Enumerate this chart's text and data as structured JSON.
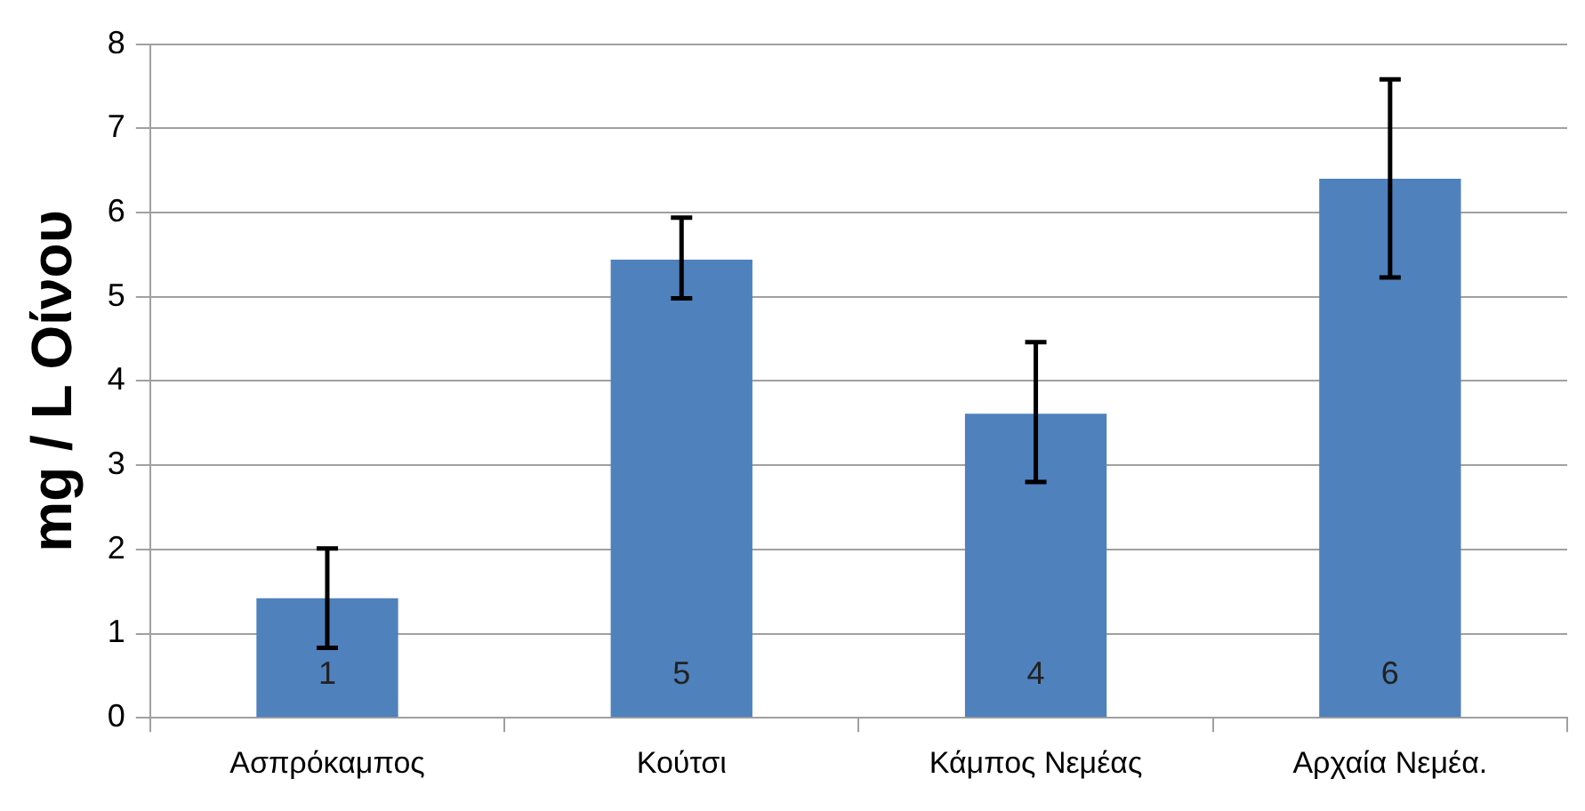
{
  "chart_data": {
    "type": "bar",
    "ylabel": "mg / L Οίνου",
    "categories": [
      "Ασπρόκαμπος",
      "Κούτσι",
      "Κάμπος Νεμέας",
      "Αρχαία Νεμέα."
    ],
    "values": [
      1.42,
      5.44,
      3.61,
      6.4
    ],
    "errors": [
      [
        0.83,
        2.01
      ],
      [
        4.98,
        5.94
      ],
      [
        2.8,
        4.46
      ],
      [
        5.23,
        7.58
      ]
    ],
    "color": "#4f81bd",
    "ylim": [
      0,
      8
    ],
    "yticks": [
      0,
      1,
      2,
      3,
      4,
      5,
      6,
      7,
      8
    ],
    "grid": "y",
    "legend": false,
    "annotations": [
      "1",
      "5",
      "4",
      "6"
    ]
  }
}
